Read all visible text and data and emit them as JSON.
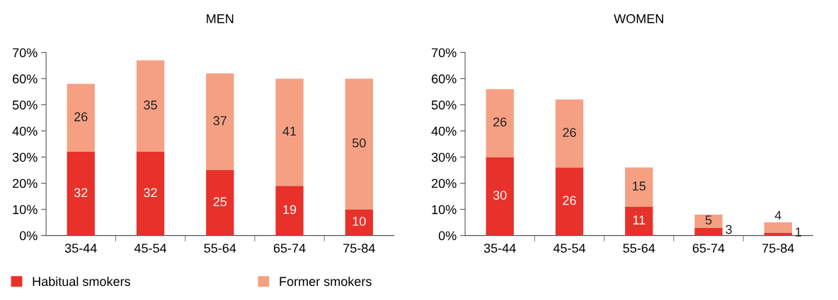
{
  "chart_data": [
    {
      "type": "bar",
      "title": "MEN",
      "stacked": true,
      "categories": [
        "35-44",
        "45-54",
        "55-64",
        "65-74",
        "75-84"
      ],
      "series": [
        {
          "name": "Habitual smokers",
          "color": "#e8312a",
          "values": [
            32,
            32,
            25,
            19,
            10
          ]
        },
        {
          "name": "Former smokers",
          "color": "#f5a083",
          "values": [
            26,
            35,
            37,
            41,
            50
          ]
        }
      ],
      "ylim": [
        0,
        70
      ],
      "yticks": [
        {
          "value": 0,
          "label": "0%"
        },
        {
          "value": 10,
          "label": "10%"
        },
        {
          "value": 20,
          "label": "20%"
        },
        {
          "value": 30,
          "label": "30%"
        },
        {
          "value": 40,
          "label": "40%"
        },
        {
          "value": 50,
          "label": "50%"
        },
        {
          "value": 60,
          "label": "60%"
        },
        {
          "value": 70,
          "label": "70%"
        }
      ],
      "data_labels": true,
      "legend": "bottom",
      "grid": false
    },
    {
      "type": "bar",
      "title": "WOMEN",
      "stacked": true,
      "categories": [
        "35-44",
        "45-54",
        "55-64",
        "65-74",
        "75-84"
      ],
      "series": [
        {
          "color": "#e8312a",
          "values": [
            30,
            26,
            11,
            3,
            1
          ]
        },
        {
          "color": "#f5a083",
          "values": [
            26,
            26,
            15,
            5,
            4
          ]
        }
      ],
      "ylim": [
        0,
        70
      ],
      "yticks": [
        {
          "value": 0,
          "label": "0%"
        },
        {
          "value": 10,
          "label": "10%"
        },
        {
          "value": 20,
          "label": "20%"
        },
        {
          "value": 30,
          "label": "30%"
        },
        {
          "value": 40,
          "label": "40%"
        },
        {
          "value": 50,
          "label": "50%"
        },
        {
          "value": 60,
          "label": "60%"
        },
        {
          "value": 70,
          "label": "70%"
        }
      ],
      "data_labels": true,
      "grid": false
    }
  ]
}
